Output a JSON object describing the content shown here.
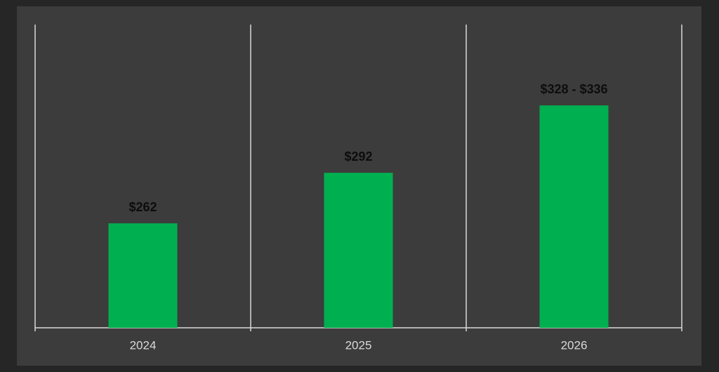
{
  "chart_data": {
    "type": "bar",
    "categories": [
      "2024",
      "2025",
      "2026"
    ],
    "values": [
      262,
      292,
      332
    ],
    "value_labels": [
      "$262",
      "$292",
      "$328 - $336"
    ],
    "color": "#00b050",
    "ylim": [
      200,
      380
    ]
  }
}
